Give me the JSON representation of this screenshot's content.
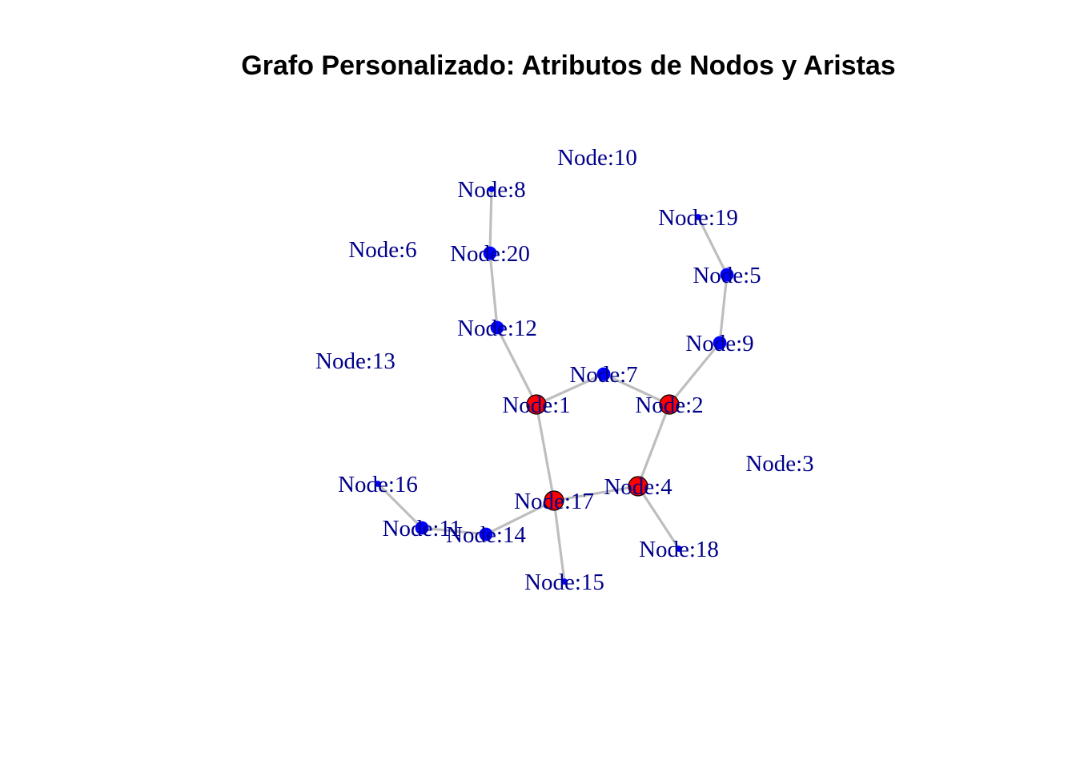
{
  "title": "Grafo Personalizado: Atributos de Nodos y Aristas",
  "colors": {
    "edge": "#bebebe",
    "label": "#00008b",
    "hub_fill": "#ff0000",
    "node_fill": "#0000ff",
    "node_stroke": "#000000",
    "title": "#000000"
  },
  "nodes": [
    {
      "id": 1,
      "label": "Node:1",
      "kind": "hub"
    },
    {
      "id": 2,
      "label": "Node:2",
      "kind": "hub"
    },
    {
      "id": 3,
      "label": "Node:3",
      "kind": "isolated"
    },
    {
      "id": 4,
      "label": "Node:4",
      "kind": "hub"
    },
    {
      "id": 5,
      "label": "Node:5",
      "kind": "normal"
    },
    {
      "id": 6,
      "label": "Node:6",
      "kind": "isolated"
    },
    {
      "id": 7,
      "label": "Node:7",
      "kind": "normal"
    },
    {
      "id": 8,
      "label": "Node:8",
      "kind": "leaf"
    },
    {
      "id": 9,
      "label": "Node:9",
      "kind": "normal"
    },
    {
      "id": 10,
      "label": "Node:10",
      "kind": "isolated"
    },
    {
      "id": 11,
      "label": "Node:11",
      "kind": "normal"
    },
    {
      "id": 12,
      "label": "Node:12",
      "kind": "normal"
    },
    {
      "id": 13,
      "label": "Node:13",
      "kind": "isolated"
    },
    {
      "id": 14,
      "label": "Node:14",
      "kind": "normal"
    },
    {
      "id": 15,
      "label": "Node:15",
      "kind": "leaf"
    },
    {
      "id": 16,
      "label": "Node:16",
      "kind": "leaf"
    },
    {
      "id": 17,
      "label": "Node:17",
      "kind": "hub"
    },
    {
      "id": 18,
      "label": "Node:18",
      "kind": "leaf"
    },
    {
      "id": 19,
      "label": "Node:19",
      "kind": "leaf"
    },
    {
      "id": 20,
      "label": "Node:20",
      "kind": "normal"
    }
  ],
  "edges": [
    [
      8,
      20
    ],
    [
      20,
      12
    ],
    [
      12,
      1
    ],
    [
      1,
      7
    ],
    [
      7,
      2
    ],
    [
      2,
      9
    ],
    [
      9,
      5
    ],
    [
      5,
      19
    ],
    [
      1,
      17
    ],
    [
      2,
      4
    ],
    [
      17,
      4
    ],
    [
      4,
      18
    ],
    [
      17,
      15
    ],
    [
      17,
      14
    ],
    [
      14,
      11
    ],
    [
      11,
      16
    ]
  ]
}
